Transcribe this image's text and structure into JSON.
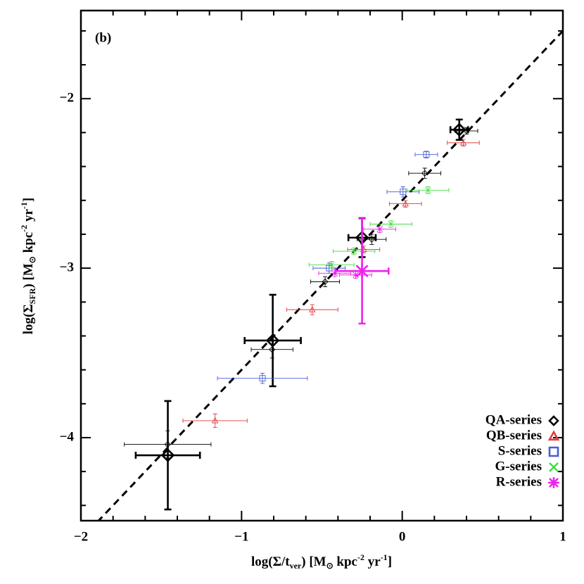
{
  "chart_data": {
    "type": "scatter",
    "panel_label": "(b)",
    "xlabel": [
      "log(Σ/t",
      "ver",
      ") [M",
      "⊙",
      " kpc",
      "-2",
      " yr",
      "-1",
      "]"
    ],
    "ylabel": [
      "log(Σ",
      "SFR",
      ") [M",
      "⊙",
      " kpc",
      "-2",
      " yr",
      "-1",
      "]"
    ],
    "xlim": [
      -2,
      1
    ],
    "ylim": [
      -4.49,
      -1.48
    ],
    "xticks": [
      -2,
      -1,
      0,
      1
    ],
    "yticks": [
      -4,
      -3,
      -2
    ],
    "xminorticks": [
      -1.8,
      -1.6,
      -1.4,
      -1.2,
      -0.8,
      -0.6,
      -0.4,
      -0.2,
      0.2,
      0.4,
      0.6,
      0.8
    ],
    "yminorticks": [
      -4.4,
      -4.2,
      -3.8,
      -3.6,
      -3.4,
      -3.2,
      -2.8,
      -2.6,
      -2.4,
      -2.2,
      -1.8,
      -1.6
    ],
    "reference_line": {
      "x": [
        -2,
        1
      ],
      "y": [
        -4.6,
        -1.6
      ],
      "style": "dashed",
      "color": "#000000"
    },
    "legend": "lower right",
    "series": [
      {
        "name": "QA-series",
        "color": "#000000",
        "marker": "diamond",
        "x": [
          -1.46,
          -0.81,
          -0.48,
          -0.19,
          0.14,
          0.4
        ],
        "y": [
          -4.04,
          -3.48,
          -3.08,
          -2.83,
          -2.44,
          -2.19
        ],
        "xerr": [
          0.27,
          0.13,
          0.09,
          0.09,
          0.1,
          0.07
        ],
        "yerr": [
          0.08,
          0.05,
          0.03,
          0.03,
          0.03,
          0.02
        ],
        "mean": {
          "x": [
            -1.459,
            -0.806,
            -0.25,
            0.355
          ],
          "y": [
            -4.104,
            -3.427,
            -2.82,
            -2.183
          ],
          "xerr": [
            0.2,
            0.175,
            0.085,
            0.055
          ],
          "yerr": [
            0.32,
            0.27,
            0.115,
            0.06
          ]
        }
      },
      {
        "name": "QB-series",
        "color": "#e03c3c",
        "marker": "triangle",
        "x": [
          -1.165,
          -0.56,
          -0.24,
          0.02,
          0.38
        ],
        "y": [
          -3.9,
          -3.245,
          -2.89,
          -2.62,
          -2.26
        ],
        "xerr": [
          0.2,
          0.16,
          0.1,
          0.1,
          0.1
        ],
        "yerr": [
          0.04,
          0.03,
          0.02,
          0.02,
          0.02
        ]
      },
      {
        "name": "S-series",
        "color": "#4a5cd6",
        "marker": "square",
        "x": [
          -0.87,
          -0.455,
          0.005,
          0.15
        ],
        "y": [
          -3.65,
          -3.0,
          -2.55,
          -2.33
        ],
        "xerr": [
          0.28,
          0.1,
          0.1,
          0.07
        ],
        "yerr": [
          0.03,
          0.03,
          0.03,
          0.02
        ]
      },
      {
        "name": "G-series",
        "color": "#44dd44",
        "marker": "x",
        "x": [
          -0.44,
          -0.3,
          -0.07,
          0.16
        ],
        "y": [
          -2.98,
          -2.9,
          -2.74,
          -2.54
        ],
        "xerr": [
          0.14,
          0.13,
          0.13,
          0.13
        ],
        "yerr": [
          0.02,
          0.02,
          0.02,
          0.02
        ]
      },
      {
        "name": "R-series",
        "color": "#ee22ee",
        "marker": "asterisk",
        "x": [
          -0.42,
          -0.29,
          -0.14
        ],
        "y": [
          -3.03,
          -3.04,
          -2.77
        ],
        "xerr": [
          0.1,
          0.1,
          0.1
        ],
        "yerr": [
          0.02,
          0.02,
          0.02
        ],
        "mean": {
          "x": [
            -0.25
          ],
          "y": [
            -3.017
          ],
          "xerr": [
            0.165
          ],
          "yerr": [
            0.31
          ]
        }
      }
    ]
  }
}
